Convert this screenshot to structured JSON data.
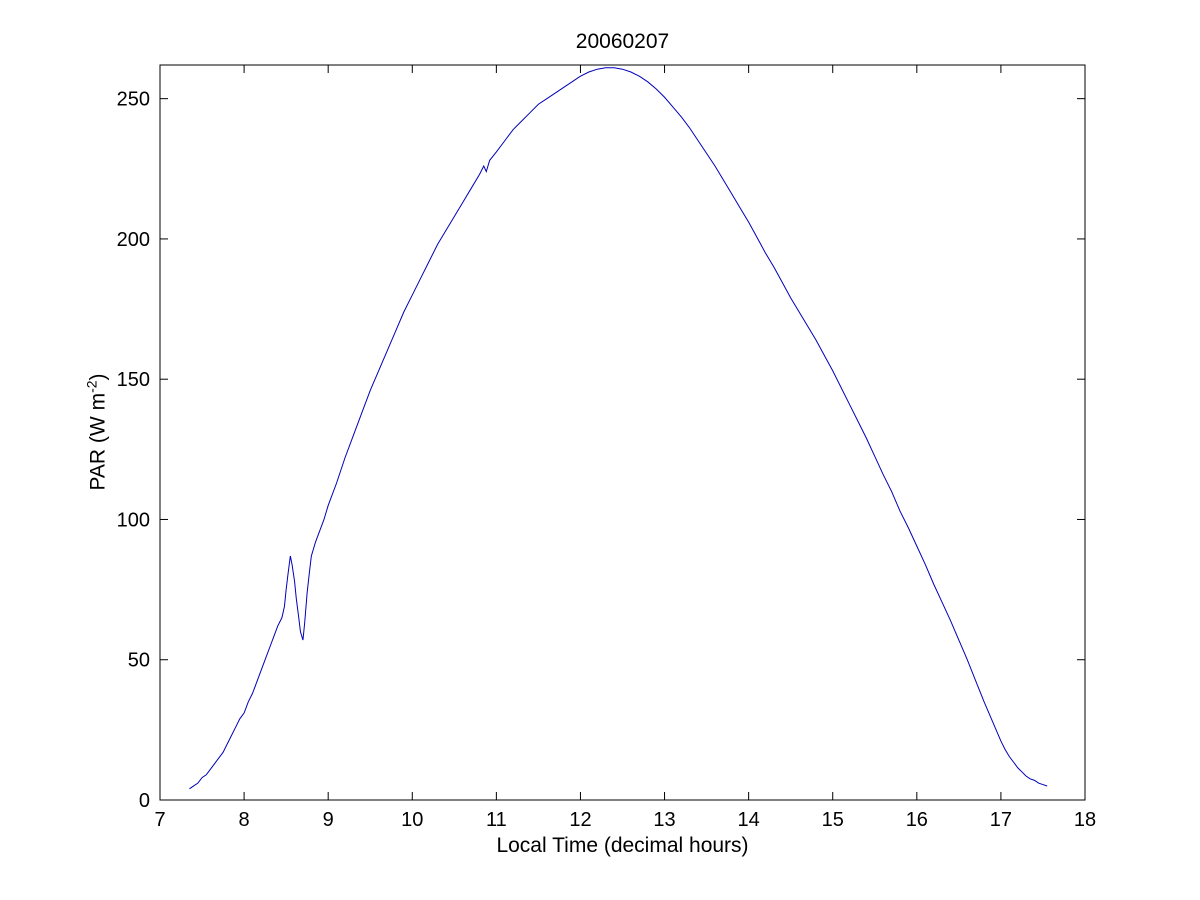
{
  "chart_data": {
    "type": "line",
    "title": "20060207",
    "xlabel": "Local Time (decimal hours)",
    "ylabel": "PAR (W m⁻²)",
    "ylabel_parts": {
      "prefix": "PAR (W m",
      "sup": "-2",
      "suffix": ")"
    },
    "xlim": [
      7,
      18
    ],
    "ylim": [
      0,
      262
    ],
    "xticks": [
      7,
      8,
      9,
      10,
      11,
      12,
      13,
      14,
      15,
      16,
      17,
      18
    ],
    "yticks": [
      0,
      50,
      100,
      150,
      200,
      250
    ],
    "grid": false,
    "legend": "none",
    "line_color": "#0000BB",
    "axis_color": "#000000",
    "background_color": "#ffffff",
    "series": [
      {
        "name": "PAR",
        "points": [
          [
            7.35,
            4
          ],
          [
            7.4,
            5
          ],
          [
            7.45,
            6
          ],
          [
            7.5,
            8
          ],
          [
            7.55,
            9
          ],
          [
            7.6,
            11
          ],
          [
            7.65,
            13
          ],
          [
            7.7,
            15
          ],
          [
            7.75,
            17
          ],
          [
            7.8,
            20
          ],
          [
            7.85,
            23
          ],
          [
            7.9,
            26
          ],
          [
            7.95,
            29
          ],
          [
            8.0,
            31
          ],
          [
            8.05,
            35
          ],
          [
            8.1,
            38
          ],
          [
            8.15,
            42
          ],
          [
            8.2,
            46
          ],
          [
            8.25,
            50
          ],
          [
            8.3,
            54
          ],
          [
            8.35,
            58
          ],
          [
            8.4,
            62
          ],
          [
            8.45,
            65
          ],
          [
            8.48,
            69
          ],
          [
            8.5,
            75
          ],
          [
            8.52,
            80
          ],
          [
            8.55,
            87
          ],
          [
            8.57,
            84
          ],
          [
            8.6,
            78
          ],
          [
            8.62,
            72
          ],
          [
            8.65,
            65
          ],
          [
            8.67,
            60
          ],
          [
            8.7,
            57
          ],
          [
            8.72,
            63
          ],
          [
            8.75,
            74
          ],
          [
            8.78,
            82
          ],
          [
            8.8,
            87
          ],
          [
            8.85,
            92
          ],
          [
            8.9,
            96
          ],
          [
            8.95,
            100
          ],
          [
            9.0,
            105
          ],
          [
            9.1,
            113
          ],
          [
            9.2,
            122
          ],
          [
            9.3,
            130
          ],
          [
            9.4,
            138
          ],
          [
            9.5,
            146
          ],
          [
            9.6,
            153
          ],
          [
            9.7,
            160
          ],
          [
            9.8,
            167
          ],
          [
            9.9,
            174
          ],
          [
            10.0,
            180
          ],
          [
            10.1,
            186
          ],
          [
            10.2,
            192
          ],
          [
            10.3,
            198
          ],
          [
            10.4,
            203
          ],
          [
            10.5,
            208
          ],
          [
            10.6,
            213
          ],
          [
            10.7,
            218
          ],
          [
            10.8,
            223
          ],
          [
            10.85,
            226
          ],
          [
            10.88,
            224
          ],
          [
            10.92,
            228
          ],
          [
            11.0,
            231
          ],
          [
            11.1,
            235
          ],
          [
            11.2,
            239
          ],
          [
            11.3,
            242
          ],
          [
            11.4,
            245
          ],
          [
            11.5,
            248
          ],
          [
            11.6,
            250
          ],
          [
            11.7,
            252
          ],
          [
            11.8,
            254
          ],
          [
            11.9,
            256
          ],
          [
            12.0,
            258
          ],
          [
            12.1,
            259.5
          ],
          [
            12.2,
            260.5
          ],
          [
            12.3,
            261
          ],
          [
            12.4,
            261
          ],
          [
            12.5,
            260.5
          ],
          [
            12.6,
            259.5
          ],
          [
            12.7,
            258
          ],
          [
            12.8,
            256
          ],
          [
            12.9,
            253.5
          ],
          [
            13.0,
            250.5
          ],
          [
            13.1,
            247
          ],
          [
            13.2,
            243.5
          ],
          [
            13.3,
            239.5
          ],
          [
            13.4,
            235
          ],
          [
            13.5,
            230.5
          ],
          [
            13.6,
            226
          ],
          [
            13.7,
            221
          ],
          [
            13.8,
            216
          ],
          [
            13.9,
            211
          ],
          [
            14.0,
            206
          ],
          [
            14.1,
            200.5
          ],
          [
            14.2,
            195
          ],
          [
            14.3,
            190
          ],
          [
            14.4,
            184.5
          ],
          [
            14.5,
            179
          ],
          [
            14.6,
            174
          ],
          [
            14.7,
            169
          ],
          [
            14.8,
            164
          ],
          [
            14.9,
            158.5
          ],
          [
            15.0,
            153
          ],
          [
            15.1,
            147
          ],
          [
            15.2,
            141
          ],
          [
            15.3,
            135
          ],
          [
            15.4,
            129
          ],
          [
            15.5,
            122.5
          ],
          [
            15.6,
            116
          ],
          [
            15.7,
            110
          ],
          [
            15.8,
            103
          ],
          [
            15.9,
            97
          ],
          [
            16.0,
            90.5
          ],
          [
            16.1,
            84
          ],
          [
            16.2,
            77
          ],
          [
            16.3,
            70.5
          ],
          [
            16.4,
            64
          ],
          [
            16.5,
            57
          ],
          [
            16.6,
            50
          ],
          [
            16.7,
            42.5
          ],
          [
            16.8,
            35
          ],
          [
            16.9,
            28
          ],
          [
            17.0,
            21
          ],
          [
            17.05,
            18
          ],
          [
            17.1,
            15.5
          ],
          [
            17.15,
            13.5
          ],
          [
            17.2,
            11.5
          ],
          [
            17.25,
            10
          ],
          [
            17.3,
            8.5
          ],
          [
            17.35,
            7.5
          ],
          [
            17.4,
            7
          ],
          [
            17.45,
            6
          ],
          [
            17.5,
            5.5
          ],
          [
            17.55,
            5
          ]
        ]
      }
    ]
  }
}
